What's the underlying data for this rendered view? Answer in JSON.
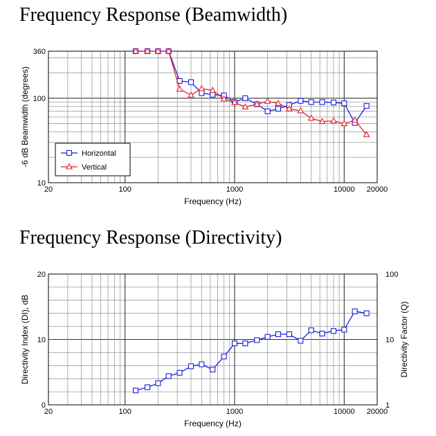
{
  "colors": {
    "horizontal": "#1a1adc",
    "vertical": "#e0202a",
    "grid": "#9a9a9a",
    "frame": "#000000"
  },
  "chart_data": [
    {
      "type": "line",
      "title": "Frequency Response (Beamwidth)",
      "xlabel": "Frequency (Hz)",
      "ylabel": "-6 dB Beamwidth (degrees)",
      "xscale": "log",
      "yscale": "log",
      "xlim": [
        20,
        20000
      ],
      "ylim": [
        10,
        360
      ],
      "xticks": [
        20,
        100,
        1000,
        10000,
        20000
      ],
      "xtick_labels": [
        "20",
        "100",
        "1000",
        "10000",
        "20000"
      ],
      "yticks": [
        10,
        100,
        360
      ],
      "ytick_labels": [
        "10",
        "100",
        "360"
      ],
      "grid": true,
      "legend_position": "bottom-left",
      "x": [
        125,
        160,
        200,
        250,
        315,
        400,
        500,
        630,
        800,
        1000,
        1250,
        1600,
        2000,
        2500,
        3150,
        4000,
        5000,
        6300,
        8000,
        10000,
        12500,
        16000
      ],
      "series": [
        {
          "name": "Horizontal",
          "marker": "square",
          "values": [
            360,
            360,
            360,
            360,
            160,
            155,
            115,
            110,
            108,
            90,
            100,
            85,
            70,
            75,
            83,
            93,
            90,
            90,
            89,
            87,
            51,
            81
          ]
        },
        {
          "name": "Vertical",
          "marker": "triangle",
          "values": [
            360,
            360,
            360,
            360,
            128,
            109,
            130,
            124,
            98,
            89,
            79,
            85,
            92,
            87,
            75,
            71,
            58,
            53,
            54,
            50,
            55,
            37
          ]
        }
      ]
    },
    {
      "type": "line",
      "title": "Frequency Response (Directivity)",
      "xlabel": "Frequency (Hz)",
      "ylabel": "Directivity Index (DI), dB",
      "ylabel_right": "Directivity Factor (Q)",
      "xscale": "log",
      "xlim": [
        20,
        20000
      ],
      "ylim": [
        0,
        20
      ],
      "ylim_right": [
        1,
        100
      ],
      "xticks": [
        20,
        100,
        1000,
        10000,
        20000
      ],
      "xtick_labels": [
        "20",
        "100",
        "1000",
        "10000",
        "20000"
      ],
      "yticks": [
        0,
        10,
        20
      ],
      "ytick_labels": [
        "0",
        "10",
        "20"
      ],
      "yticks_right": [
        1,
        10,
        100
      ],
      "ytick_labels_right": [
        "1",
        "10",
        "100"
      ],
      "grid": true,
      "x": [
        125,
        160,
        200,
        250,
        315,
        400,
        500,
        630,
        800,
        1000,
        1250,
        1600,
        2000,
        2500,
        3150,
        4000,
        5000,
        6300,
        8000,
        10000,
        12500,
        16000
      ],
      "series": [
        {
          "name": "Directivity Index",
          "marker": "square",
          "values": [
            2.2,
            2.7,
            3.3,
            4.4,
            4.9,
            5.9,
            6.2,
            5.4,
            7.4,
            9.4,
            9.4,
            9.9,
            10.4,
            10.8,
            10.8,
            9.8,
            11.4,
            10.9,
            11.3,
            11.5,
            14.3,
            14.0
          ]
        }
      ]
    }
  ]
}
